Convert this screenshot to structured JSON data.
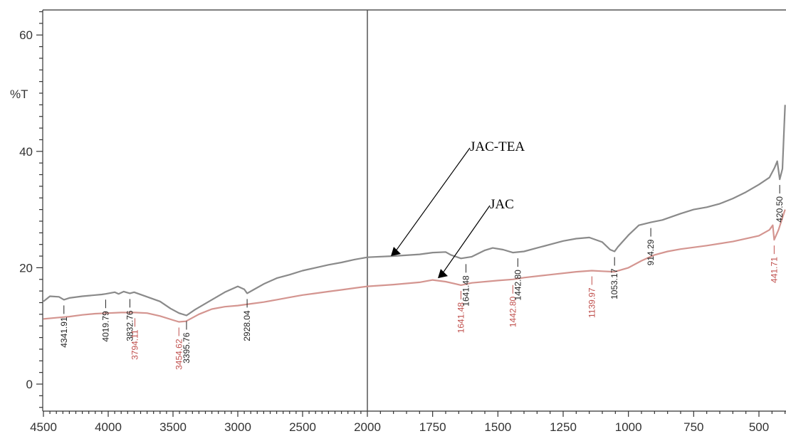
{
  "chart_data": {
    "type": "line",
    "title": "",
    "xlabel": "",
    "ylabel": "%T",
    "xlim": [
      4500,
      400
    ],
    "ylim": [
      -4,
      64
    ],
    "x_ticks": [
      "4500",
      "4000",
      "3500",
      "3000",
      "2500",
      "2000",
      "1750",
      "1500",
      "1250",
      "1000",
      "750",
      "500"
    ],
    "y_ticks": [
      "0",
      "20",
      "40",
      "60"
    ],
    "grid": false,
    "colors": {
      "upper": "#8a8a8a",
      "lower": "#d49590",
      "annot_black": "#222222",
      "annot_red": "#c0504d"
    },
    "series": [
      {
        "name": "JAC-TEA",
        "points": [
          [
            4500,
            14.2
          ],
          [
            4450,
            15.1
          ],
          [
            4380,
            15.0
          ],
          [
            4341.91,
            14.5
          ],
          [
            4300,
            14.8
          ],
          [
            4200,
            15.1
          ],
          [
            4100,
            15.3
          ],
          [
            4050,
            15.4
          ],
          [
            4019.79,
            15.5
          ],
          [
            3950,
            15.8
          ],
          [
            3920,
            15.5
          ],
          [
            3880,
            15.9
          ],
          [
            3832.76,
            15.6
          ],
          [
            3800,
            15.8
          ],
          [
            3700,
            15.0
          ],
          [
            3600,
            14.2
          ],
          [
            3520,
            13.0
          ],
          [
            3454,
            12.2
          ],
          [
            3395.76,
            11.8
          ],
          [
            3330,
            12.8
          ],
          [
            3200,
            14.5
          ],
          [
            3100,
            15.8
          ],
          [
            3000,
            16.8
          ],
          [
            2950,
            16.3
          ],
          [
            2928.04,
            15.6
          ],
          [
            2880,
            16.2
          ],
          [
            2800,
            17.2
          ],
          [
            2700,
            18.2
          ],
          [
            2600,
            18.8
          ],
          [
            2500,
            19.5
          ],
          [
            2400,
            20.0
          ],
          [
            2300,
            20.5
          ],
          [
            2200,
            20.9
          ],
          [
            2100,
            21.4
          ],
          [
            2000,
            21.8
          ],
          [
            1900,
            22.0
          ],
          [
            1800,
            22.3
          ],
          [
            1750,
            22.6
          ],
          [
            1700,
            22.7
          ],
          [
            1680,
            22.2
          ],
          [
            1641.48,
            21.6
          ],
          [
            1600,
            21.9
          ],
          [
            1550,
            23.0
          ],
          [
            1520,
            23.4
          ],
          [
            1480,
            23.1
          ],
          [
            1442.8,
            22.6
          ],
          [
            1400,
            22.8
          ],
          [
            1350,
            23.4
          ],
          [
            1300,
            24.0
          ],
          [
            1250,
            24.6
          ],
          [
            1200,
            25.0
          ],
          [
            1150,
            25.2
          ],
          [
            1100,
            24.4
          ],
          [
            1070,
            23.1
          ],
          [
            1053.17,
            22.8
          ],
          [
            1040,
            23.6
          ],
          [
            1000,
            25.6
          ],
          [
            960,
            27.3
          ],
          [
            914.29,
            27.8
          ],
          [
            870,
            28.2
          ],
          [
            800,
            29.3
          ],
          [
            750,
            30.0
          ],
          [
            700,
            30.4
          ],
          [
            650,
            31.0
          ],
          [
            600,
            31.9
          ],
          [
            550,
            33.0
          ],
          [
            500,
            34.3
          ],
          [
            460,
            35.5
          ],
          [
            440,
            37.2
          ],
          [
            430,
            38.3
          ],
          [
            420.5,
            35.2
          ],
          [
            410,
            37.0
          ],
          [
            400,
            48.0
          ]
        ]
      },
      {
        "name": "JAC",
        "points": [
          [
            4500,
            11.2
          ],
          [
            4400,
            11.4
          ],
          [
            4300,
            11.6
          ],
          [
            4200,
            11.9
          ],
          [
            4100,
            12.1
          ],
          [
            4000,
            12.2
          ],
          [
            3900,
            12.3
          ],
          [
            3794.11,
            12.3
          ],
          [
            3700,
            12.2
          ],
          [
            3600,
            11.7
          ],
          [
            3500,
            11.0
          ],
          [
            3454.62,
            10.7
          ],
          [
            3400,
            10.8
          ],
          [
            3300,
            12.0
          ],
          [
            3200,
            12.9
          ],
          [
            3100,
            13.3
          ],
          [
            3000,
            13.5
          ],
          [
            2900,
            13.8
          ],
          [
            2800,
            14.1
          ],
          [
            2700,
            14.5
          ],
          [
            2600,
            14.9
          ],
          [
            2500,
            15.3
          ],
          [
            2400,
            15.6
          ],
          [
            2300,
            15.9
          ],
          [
            2200,
            16.2
          ],
          [
            2100,
            16.5
          ],
          [
            2000,
            16.8
          ],
          [
            1900,
            17.1
          ],
          [
            1800,
            17.5
          ],
          [
            1750,
            17.9
          ],
          [
            1700,
            17.6
          ],
          [
            1641.48,
            17.0
          ],
          [
            1600,
            17.4
          ],
          [
            1500,
            17.8
          ],
          [
            1442.8,
            18.0
          ],
          [
            1400,
            18.3
          ],
          [
            1300,
            18.8
          ],
          [
            1200,
            19.3
          ],
          [
            1139.97,
            19.5
          ],
          [
            1100,
            19.4
          ],
          [
            1053.17,
            19.3
          ],
          [
            1000,
            20.0
          ],
          [
            950,
            21.2
          ],
          [
            900,
            22.2
          ],
          [
            850,
            22.8
          ],
          [
            800,
            23.2
          ],
          [
            700,
            23.8
          ],
          [
            600,
            24.5
          ],
          [
            500,
            25.5
          ],
          [
            460,
            26.5
          ],
          [
            447,
            27.3
          ],
          [
            441.71,
            24.8
          ],
          [
            425,
            26.5
          ],
          [
            400,
            30.0
          ]
        ]
      }
    ],
    "annotations": [
      {
        "label": "4341.91",
        "x": 4341.91,
        "color": "black"
      },
      {
        "label": "4019.79",
        "x": 4019.79,
        "color": "black"
      },
      {
        "label": "3832.76",
        "x": 3832.76,
        "color": "black"
      },
      {
        "label": "3794.11",
        "x": 3794.11,
        "color": "red"
      },
      {
        "label": "3454.62",
        "x": 3454.62,
        "color": "red"
      },
      {
        "label": "3395.76",
        "x": 3395.76,
        "color": "black"
      },
      {
        "label": "2928.04",
        "x": 2928.04,
        "color": "black"
      },
      {
        "label": "1641.48",
        "x": 1641.48,
        "color": "red"
      },
      {
        "label": "1641.48",
        "x": 1641.48,
        "color": "black"
      },
      {
        "label": "1442.80",
        "x": 1442.8,
        "color": "red"
      },
      {
        "label": "1442.80",
        "x": 1442.8,
        "color": "black"
      },
      {
        "label": "1139.97",
        "x": 1139.97,
        "color": "red"
      },
      {
        "label": "1053.17",
        "x": 1053.17,
        "color": "black"
      },
      {
        "label": "914.29",
        "x": 914.29,
        "color": "black"
      },
      {
        "label": "420.50",
        "x": 420.5,
        "color": "black"
      },
      {
        "label": "441.71",
        "x": 441.71,
        "color": "red"
      }
    ],
    "callouts": [
      {
        "text": "JAC-TEA",
        "series": "JAC-TEA",
        "x": 1910,
        "y": 22.0
      },
      {
        "text": "JAC",
        "series": "JAC",
        "x": 1730,
        "y": 18.2
      }
    ],
    "vertical_marker": 2000
  }
}
